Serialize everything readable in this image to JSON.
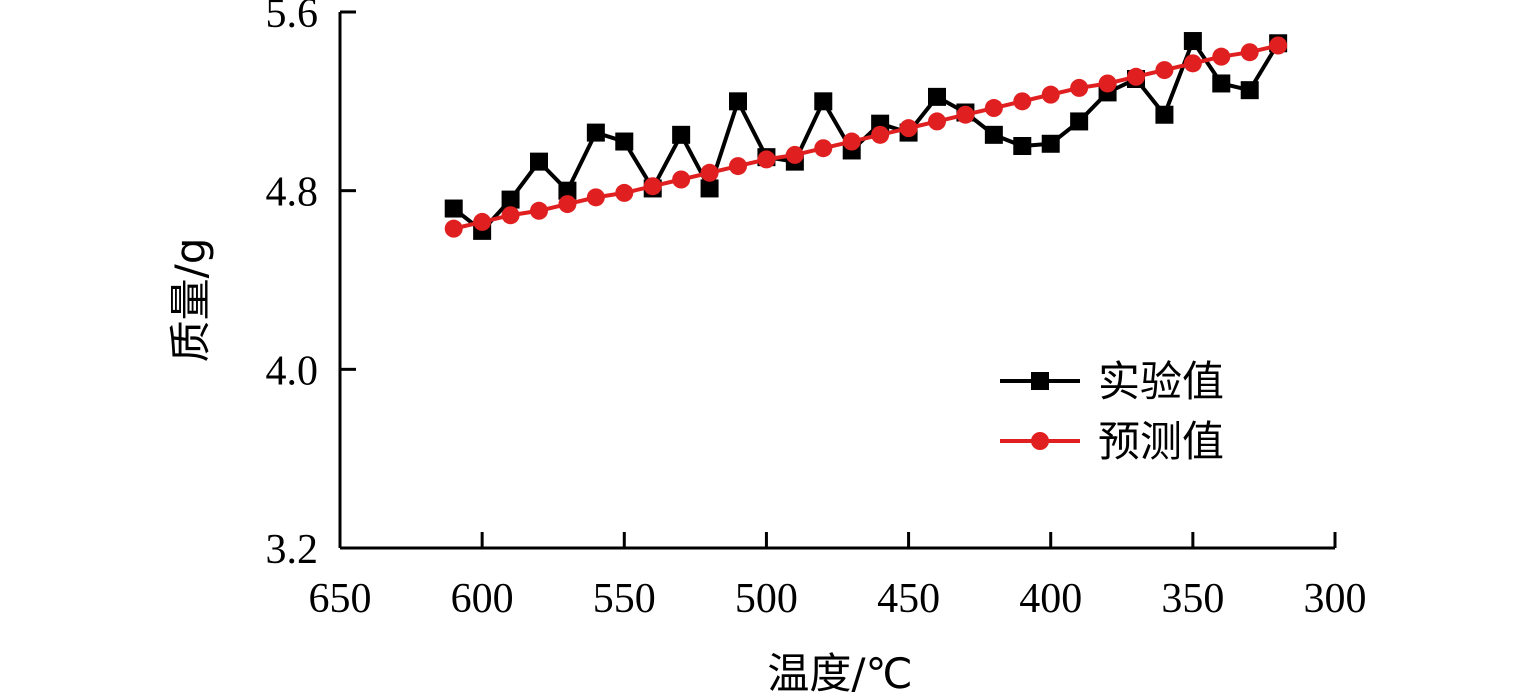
{
  "chart_data": {
    "type": "line",
    "title": "",
    "xlabel": "温度/℃",
    "ylabel": "质量/g",
    "xlim": [
      650,
      300
    ],
    "ylim": [
      3.2,
      5.6
    ],
    "x_reversed": true,
    "x_ticks": [
      650,
      600,
      550,
      500,
      450,
      400,
      350,
      300
    ],
    "x_tick_labels": [
      "650",
      "600",
      "550",
      "500",
      "450",
      "400",
      "350",
      "300"
    ],
    "y_ticks": [
      3.2,
      4.0,
      4.8,
      5.6
    ],
    "y_tick_labels": [
      "3.2",
      "4.0",
      "4.8",
      "5.6"
    ],
    "grid": false,
    "legend_position": "bottom-right",
    "x": [
      610,
      600,
      590,
      580,
      570,
      560,
      550,
      540,
      530,
      520,
      510,
      500,
      490,
      480,
      470,
      460,
      450,
      440,
      430,
      420,
      410,
      400,
      390,
      380,
      370,
      360,
      350,
      340,
      330,
      320
    ],
    "series": [
      {
        "name": "实验值",
        "color": "#000000",
        "marker": "square",
        "values": [
          4.72,
          4.62,
          4.76,
          4.93,
          4.8,
          5.06,
          5.02,
          4.81,
          5.05,
          4.81,
          5.2,
          4.95,
          4.93,
          5.2,
          4.98,
          5.1,
          5.06,
          5.22,
          5.15,
          5.05,
          5.0,
          5.01,
          5.11,
          5.24,
          5.3,
          5.14,
          5.47,
          5.28,
          5.25,
          5.46
        ]
      },
      {
        "name": "预测值",
        "color": "#e02020",
        "marker": "circle",
        "values": [
          4.63,
          4.66,
          4.69,
          4.71,
          4.74,
          4.77,
          4.79,
          4.82,
          4.85,
          4.88,
          4.91,
          4.94,
          4.96,
          4.99,
          5.02,
          5.05,
          5.08,
          5.11,
          5.14,
          5.17,
          5.2,
          5.23,
          5.26,
          5.28,
          5.31,
          5.34,
          5.37,
          5.4,
          5.42,
          5.45
        ]
      }
    ]
  }
}
